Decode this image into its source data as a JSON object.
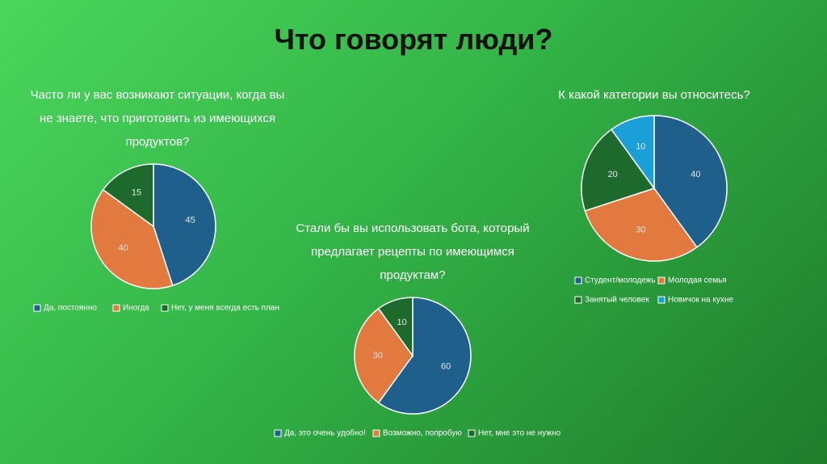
{
  "title": "Что говорят люди?",
  "chart_data": [
    {
      "type": "pie",
      "title": "Часто ли у вас возникают ситуации, когда вы не знаете, что приготовить из имеющихся продуктов?",
      "categories": [
        "Да, постоянно",
        "Иногда",
        "Нет, у меня всегда есть план"
      ],
      "values": [
        45,
        40,
        15
      ],
      "colors": [
        "#1f5f8b",
        "#e27a3f",
        "#1e6a2c"
      ]
    },
    {
      "type": "pie",
      "title": "Стали бы вы использовать бота, который предлагает рецепты по имеющимся продуктам?",
      "categories": [
        "Да, это очень удобно!",
        "Возможно, попробую",
        "Нет, мне это не нужно"
      ],
      "values": [
        60,
        30,
        10
      ],
      "colors": [
        "#1f5f8b",
        "#e27a3f",
        "#1e6a2c"
      ]
    },
    {
      "type": "pie",
      "title": "К какой категории вы относитесь?",
      "categories": [
        "Студент/молодежь",
        "Молодая семья",
        "Занятый человек",
        "Новичок на кухне"
      ],
      "values": [
        40,
        30,
        20,
        10
      ],
      "colors": [
        "#1f5f8b",
        "#e27a3f",
        "#1e6a2c",
        "#1a9fd8"
      ]
    }
  ]
}
